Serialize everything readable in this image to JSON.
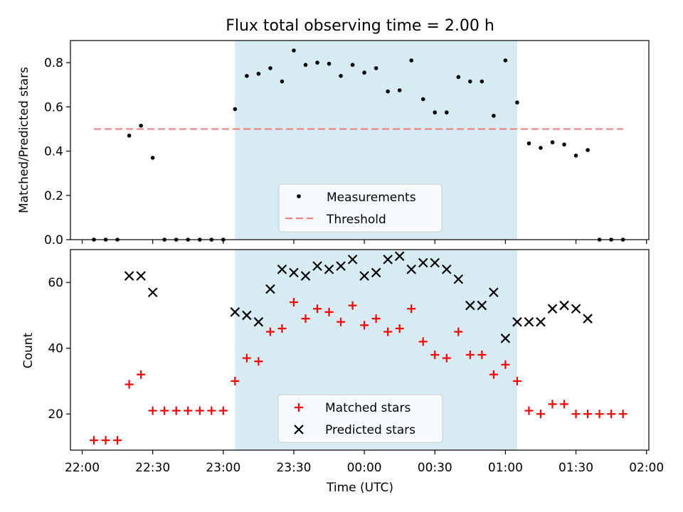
{
  "chart_data": [
    {
      "type": "scatter",
      "title": "Flux total observing time = 2.00 h",
      "ylabel": "Matched/Predicted stars",
      "xlabel": "",
      "ylim": [
        0,
        0.9
      ],
      "yticks": [
        "0.0",
        "0.2",
        "0.4",
        "0.6",
        "0.8"
      ],
      "highlight_span": {
        "start": "23:05",
        "end": "01:05",
        "color": "#add8e6"
      },
      "threshold": {
        "name": "Threshold",
        "y": 0.5,
        "x_start": "22:05",
        "x_end": "01:50",
        "color": "#f08080",
        "style": "dashed"
      },
      "legend": {
        "placement": "lower center",
        "entries": [
          "Measurements",
          "Threshold"
        ]
      },
      "series": [
        {
          "name": "Measurements",
          "marker": "dot",
          "color": "#000000",
          "x": [
            "22:05",
            "22:10",
            "22:15",
            "22:20",
            "22:25",
            "22:30",
            "22:35",
            "22:40",
            "22:45",
            "22:50",
            "22:55",
            "23:00",
            "23:05",
            "23:10",
            "23:15",
            "23:20",
            "23:25",
            "23:30",
            "23:35",
            "23:40",
            "23:45",
            "23:50",
            "23:55",
            "00:00",
            "00:05",
            "00:10",
            "00:15",
            "00:20",
            "00:25",
            "00:30",
            "00:35",
            "00:40",
            "00:45",
            "00:50",
            "00:55",
            "01:00",
            "01:05",
            "01:10",
            "01:15",
            "01:20",
            "01:25",
            "01:30",
            "01:35",
            "01:40",
            "01:45",
            "01:50"
          ],
          "y": [
            0,
            0,
            0,
            0.47,
            0.515,
            0.37,
            0,
            0,
            0,
            0,
            0,
            0,
            0.59,
            0.74,
            0.75,
            0.775,
            0.715,
            0.855,
            0.79,
            0.8,
            0.795,
            0.74,
            0.79,
            0.755,
            0.775,
            0.67,
            0.675,
            0.81,
            0.635,
            0.575,
            0.575,
            0.735,
            0.715,
            0.715,
            0.56,
            0.81,
            0.62,
            0.435,
            0.415,
            0.44,
            0.43,
            0.38,
            0.405,
            0,
            0,
            0
          ]
        }
      ]
    },
    {
      "type": "scatter",
      "xlabel": "Time (UTC)",
      "ylabel": "Count",
      "ylim": [
        9,
        70
      ],
      "yticks": [
        "20",
        "40",
        "60"
      ],
      "xlim": [
        "21:55",
        "02:01"
      ],
      "xticks": [
        "22:00",
        "22:30",
        "23:00",
        "23:30",
        "00:00",
        "00:30",
        "01:00",
        "01:30",
        "02:00"
      ],
      "highlight_span": {
        "start": "23:05",
        "end": "01:05",
        "color": "#add8e6"
      },
      "legend": {
        "placement": "lower center",
        "entries": [
          "Matched stars",
          "Predicted stars"
        ]
      },
      "series": [
        {
          "name": "Matched stars",
          "marker": "plus",
          "color": "#ff0000",
          "x": [
            "22:05",
            "22:10",
            "22:15",
            "22:20",
            "22:25",
            "22:30",
            "22:35",
            "22:40",
            "22:45",
            "22:50",
            "22:55",
            "23:00",
            "23:05",
            "23:10",
            "23:15",
            "23:20",
            "23:25",
            "23:30",
            "23:35",
            "23:40",
            "23:45",
            "23:50",
            "23:55",
            "00:00",
            "00:05",
            "00:10",
            "00:15",
            "00:20",
            "00:25",
            "00:30",
            "00:35",
            "00:40",
            "00:45",
            "00:50",
            "00:55",
            "01:00",
            "01:05",
            "01:10",
            "01:15",
            "01:20",
            "01:25",
            "01:30",
            "01:35",
            "01:40",
            "01:45",
            "01:50"
          ],
          "y": [
            12,
            12,
            12,
            29,
            32,
            21,
            21,
            21,
            21,
            21,
            21,
            21,
            30,
            37,
            36,
            45,
            46,
            54,
            49,
            52,
            51,
            48,
            53,
            47,
            49,
            45,
            46,
            52,
            42,
            38,
            37,
            45,
            38,
            38,
            32,
            35,
            30,
            21,
            20,
            23,
            23,
            20,
            20,
            20,
            20,
            20
          ]
        },
        {
          "name": "Predicted stars",
          "marker": "x",
          "color": "#000000",
          "x": [
            "22:20",
            "22:25",
            "22:30",
            "23:05",
            "23:10",
            "23:15",
            "23:20",
            "23:25",
            "23:30",
            "23:35",
            "23:40",
            "23:45",
            "23:50",
            "23:55",
            "00:00",
            "00:05",
            "00:10",
            "00:15",
            "00:20",
            "00:25",
            "00:30",
            "00:35",
            "00:40",
            "00:45",
            "00:50",
            "00:55",
            "01:00",
            "01:05",
            "01:10",
            "01:15",
            "01:20",
            "01:25",
            "01:30",
            "01:35"
          ],
          "y": [
            62,
            62,
            57,
            51,
            50,
            48,
            58,
            64,
            63,
            62,
            65,
            64,
            65,
            67,
            62,
            63,
            67,
            68,
            64,
            66,
            66,
            64,
            61,
            53,
            53,
            57,
            43,
            48,
            48,
            48,
            52,
            53,
            52,
            49
          ]
        }
      ]
    }
  ]
}
